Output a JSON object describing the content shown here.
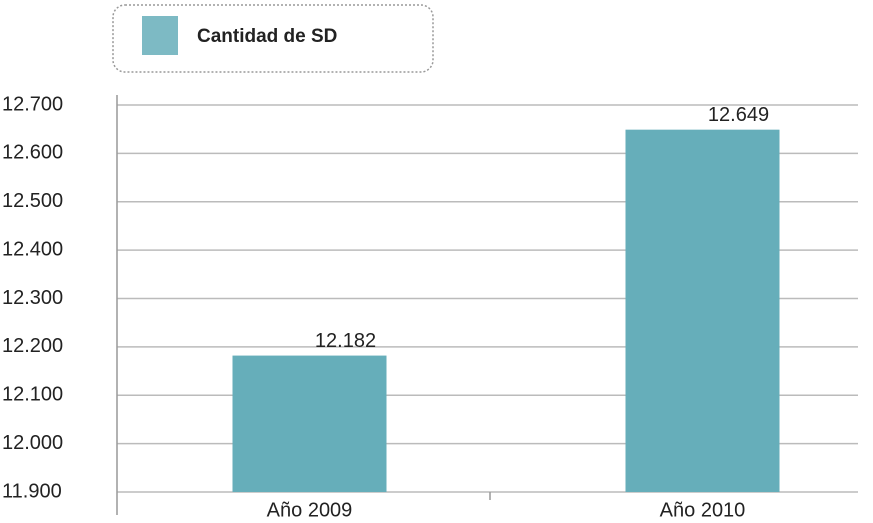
{
  "chart_data": {
    "type": "bar",
    "categories": [
      "Año 2009",
      "Año 2010"
    ],
    "series": [
      {
        "name": "Cantidad de SD",
        "color": "#66aeba",
        "values": [
          12182,
          12649
        ],
        "value_labels": [
          "12.182",
          "12.649"
        ]
      }
    ],
    "ylim": [
      11900,
      12700
    ],
    "yticks": [
      {
        "value": 11900,
        "label": "11.900"
      },
      {
        "value": 12000,
        "label": "12.000"
      },
      {
        "value": 12100,
        "label": "12.100"
      },
      {
        "value": 12200,
        "label": "12.200"
      },
      {
        "value": 12300,
        "label": "12.300"
      },
      {
        "value": 12400,
        "label": "12.400"
      },
      {
        "value": 12500,
        "label": "12.500"
      },
      {
        "value": 12600,
        "label": "12.600"
      },
      {
        "value": 12700,
        "label": "12.700"
      }
    ],
    "grid": true,
    "legend": "top"
  }
}
